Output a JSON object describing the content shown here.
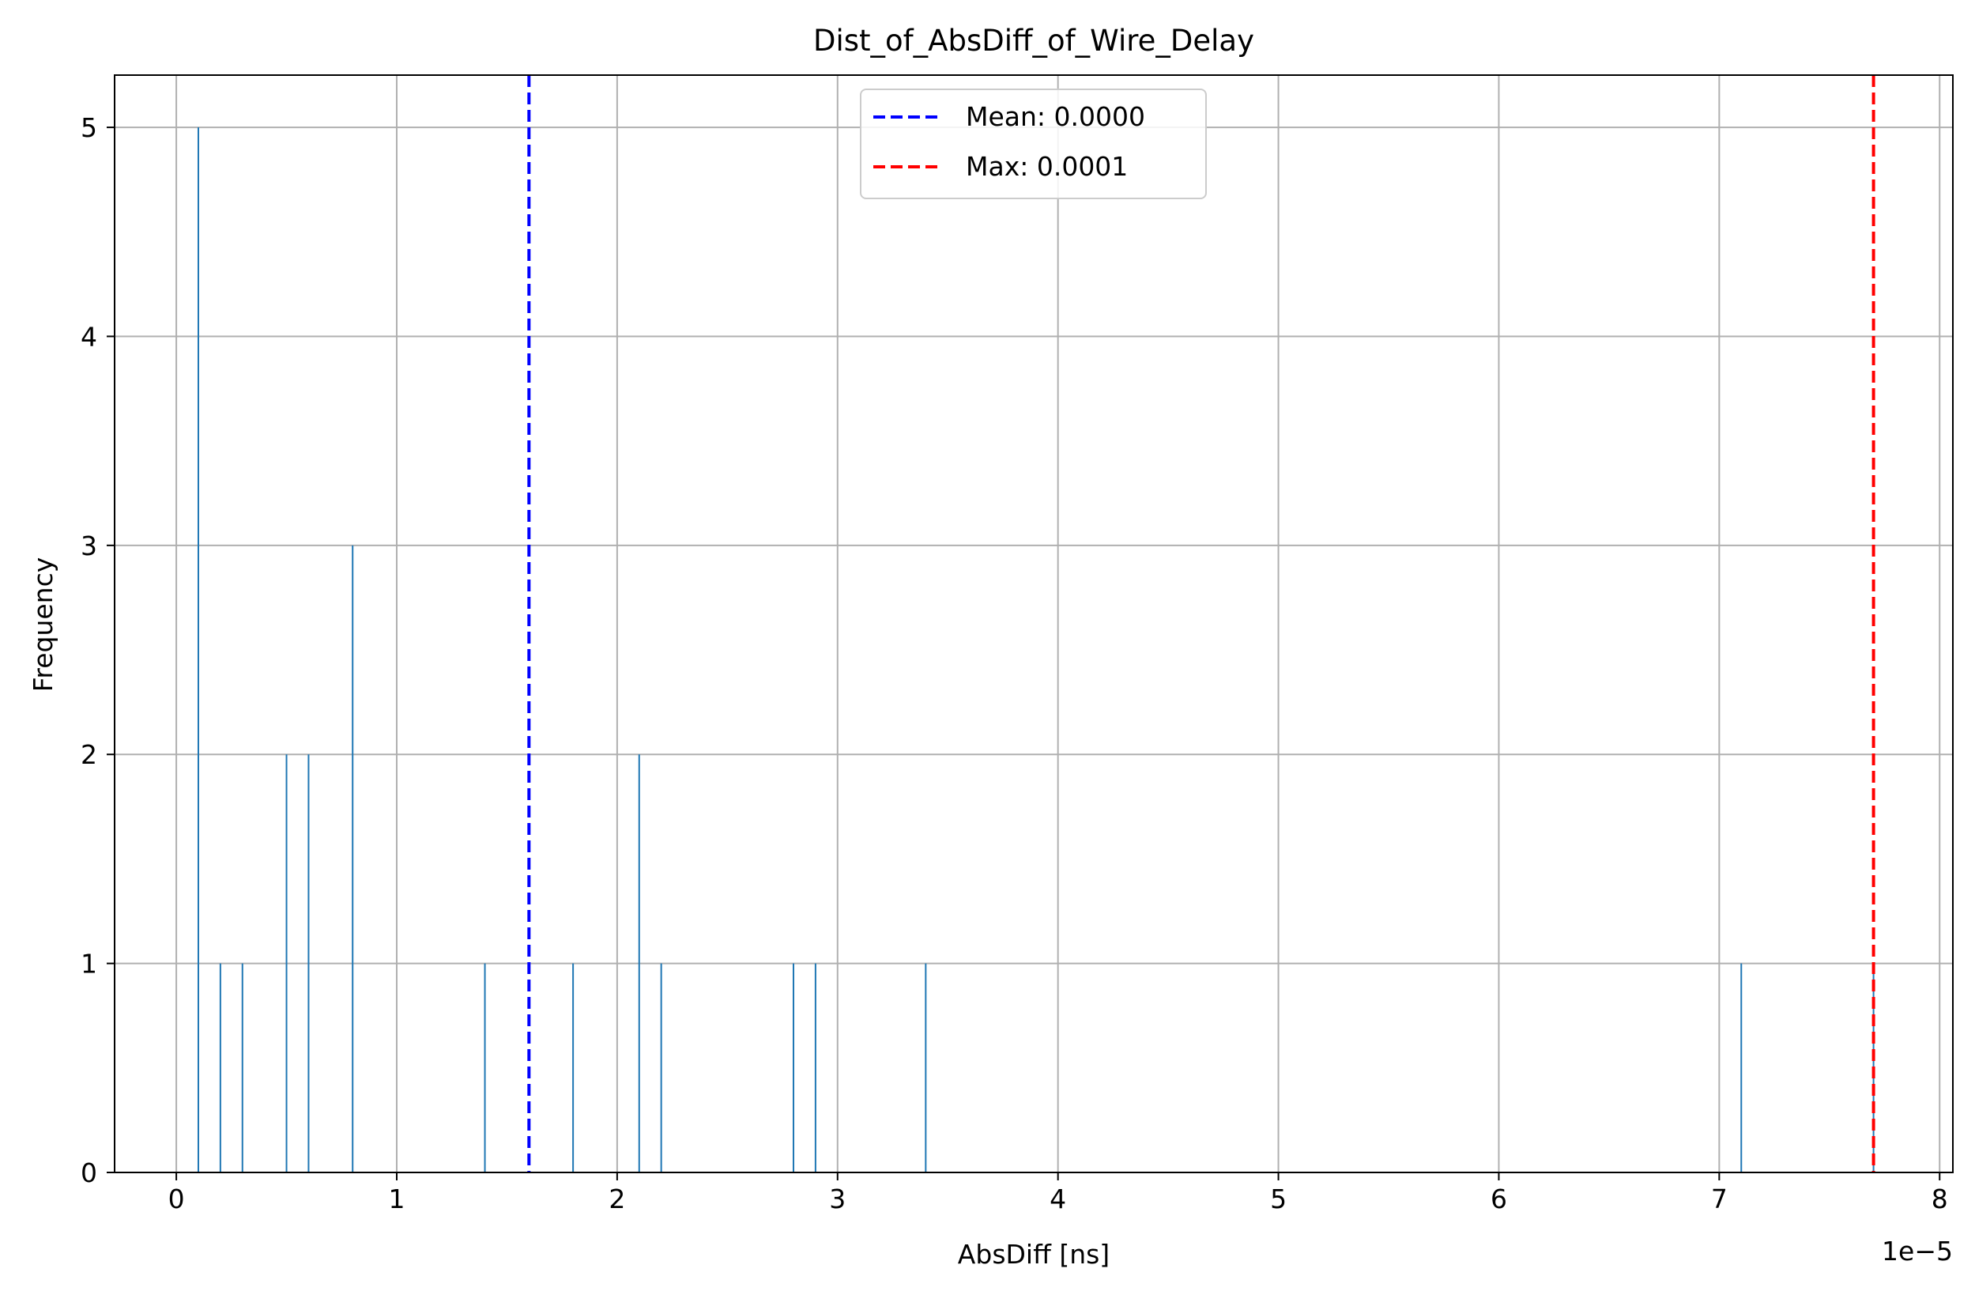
{
  "chart_data": {
    "type": "histogram",
    "title": "Dist_of_AbsDiff_of_Wire_Delay",
    "xlabel": "AbsDiff [ns]",
    "ylabel": "Frequency",
    "x_scale_label": "1e−5",
    "x_scale": 1e-05,
    "xlim": [
      -0.28,
      8.06
    ],
    "ylim": [
      0,
      5.25
    ],
    "xticks": [
      0,
      1,
      2,
      3,
      4,
      5,
      6,
      7,
      8
    ],
    "xtick_labels": [
      "0",
      "1",
      "2",
      "3",
      "4",
      "5",
      "6",
      "7",
      "8"
    ],
    "yticks": [
      0,
      1,
      2,
      3,
      4,
      5
    ],
    "ytick_labels": [
      "0",
      "1",
      "2",
      "3",
      "4",
      "5"
    ],
    "grid": true,
    "bar_color": "#1f77b4",
    "series": [
      {
        "x": [
          0.1,
          0.2,
          0.3,
          0.5,
          0.6,
          0.8,
          1.4,
          1.8,
          2.1,
          2.2,
          2.8,
          2.9,
          3.4,
          7.1,
          7.7
        ],
        "values": [
          5,
          1,
          1,
          2,
          2,
          3,
          1,
          1,
          2,
          1,
          1,
          1,
          1,
          1,
          1
        ]
      }
    ],
    "reference_lines": [
      {
        "label": "Mean: 0.0000",
        "x": 1.6,
        "color": "#0000ff",
        "style": "dashed"
      },
      {
        "label": "Max: 0.0001",
        "x": 7.7,
        "color": "#ff0000",
        "style": "dashed"
      }
    ],
    "legend_position": "top-center"
  }
}
